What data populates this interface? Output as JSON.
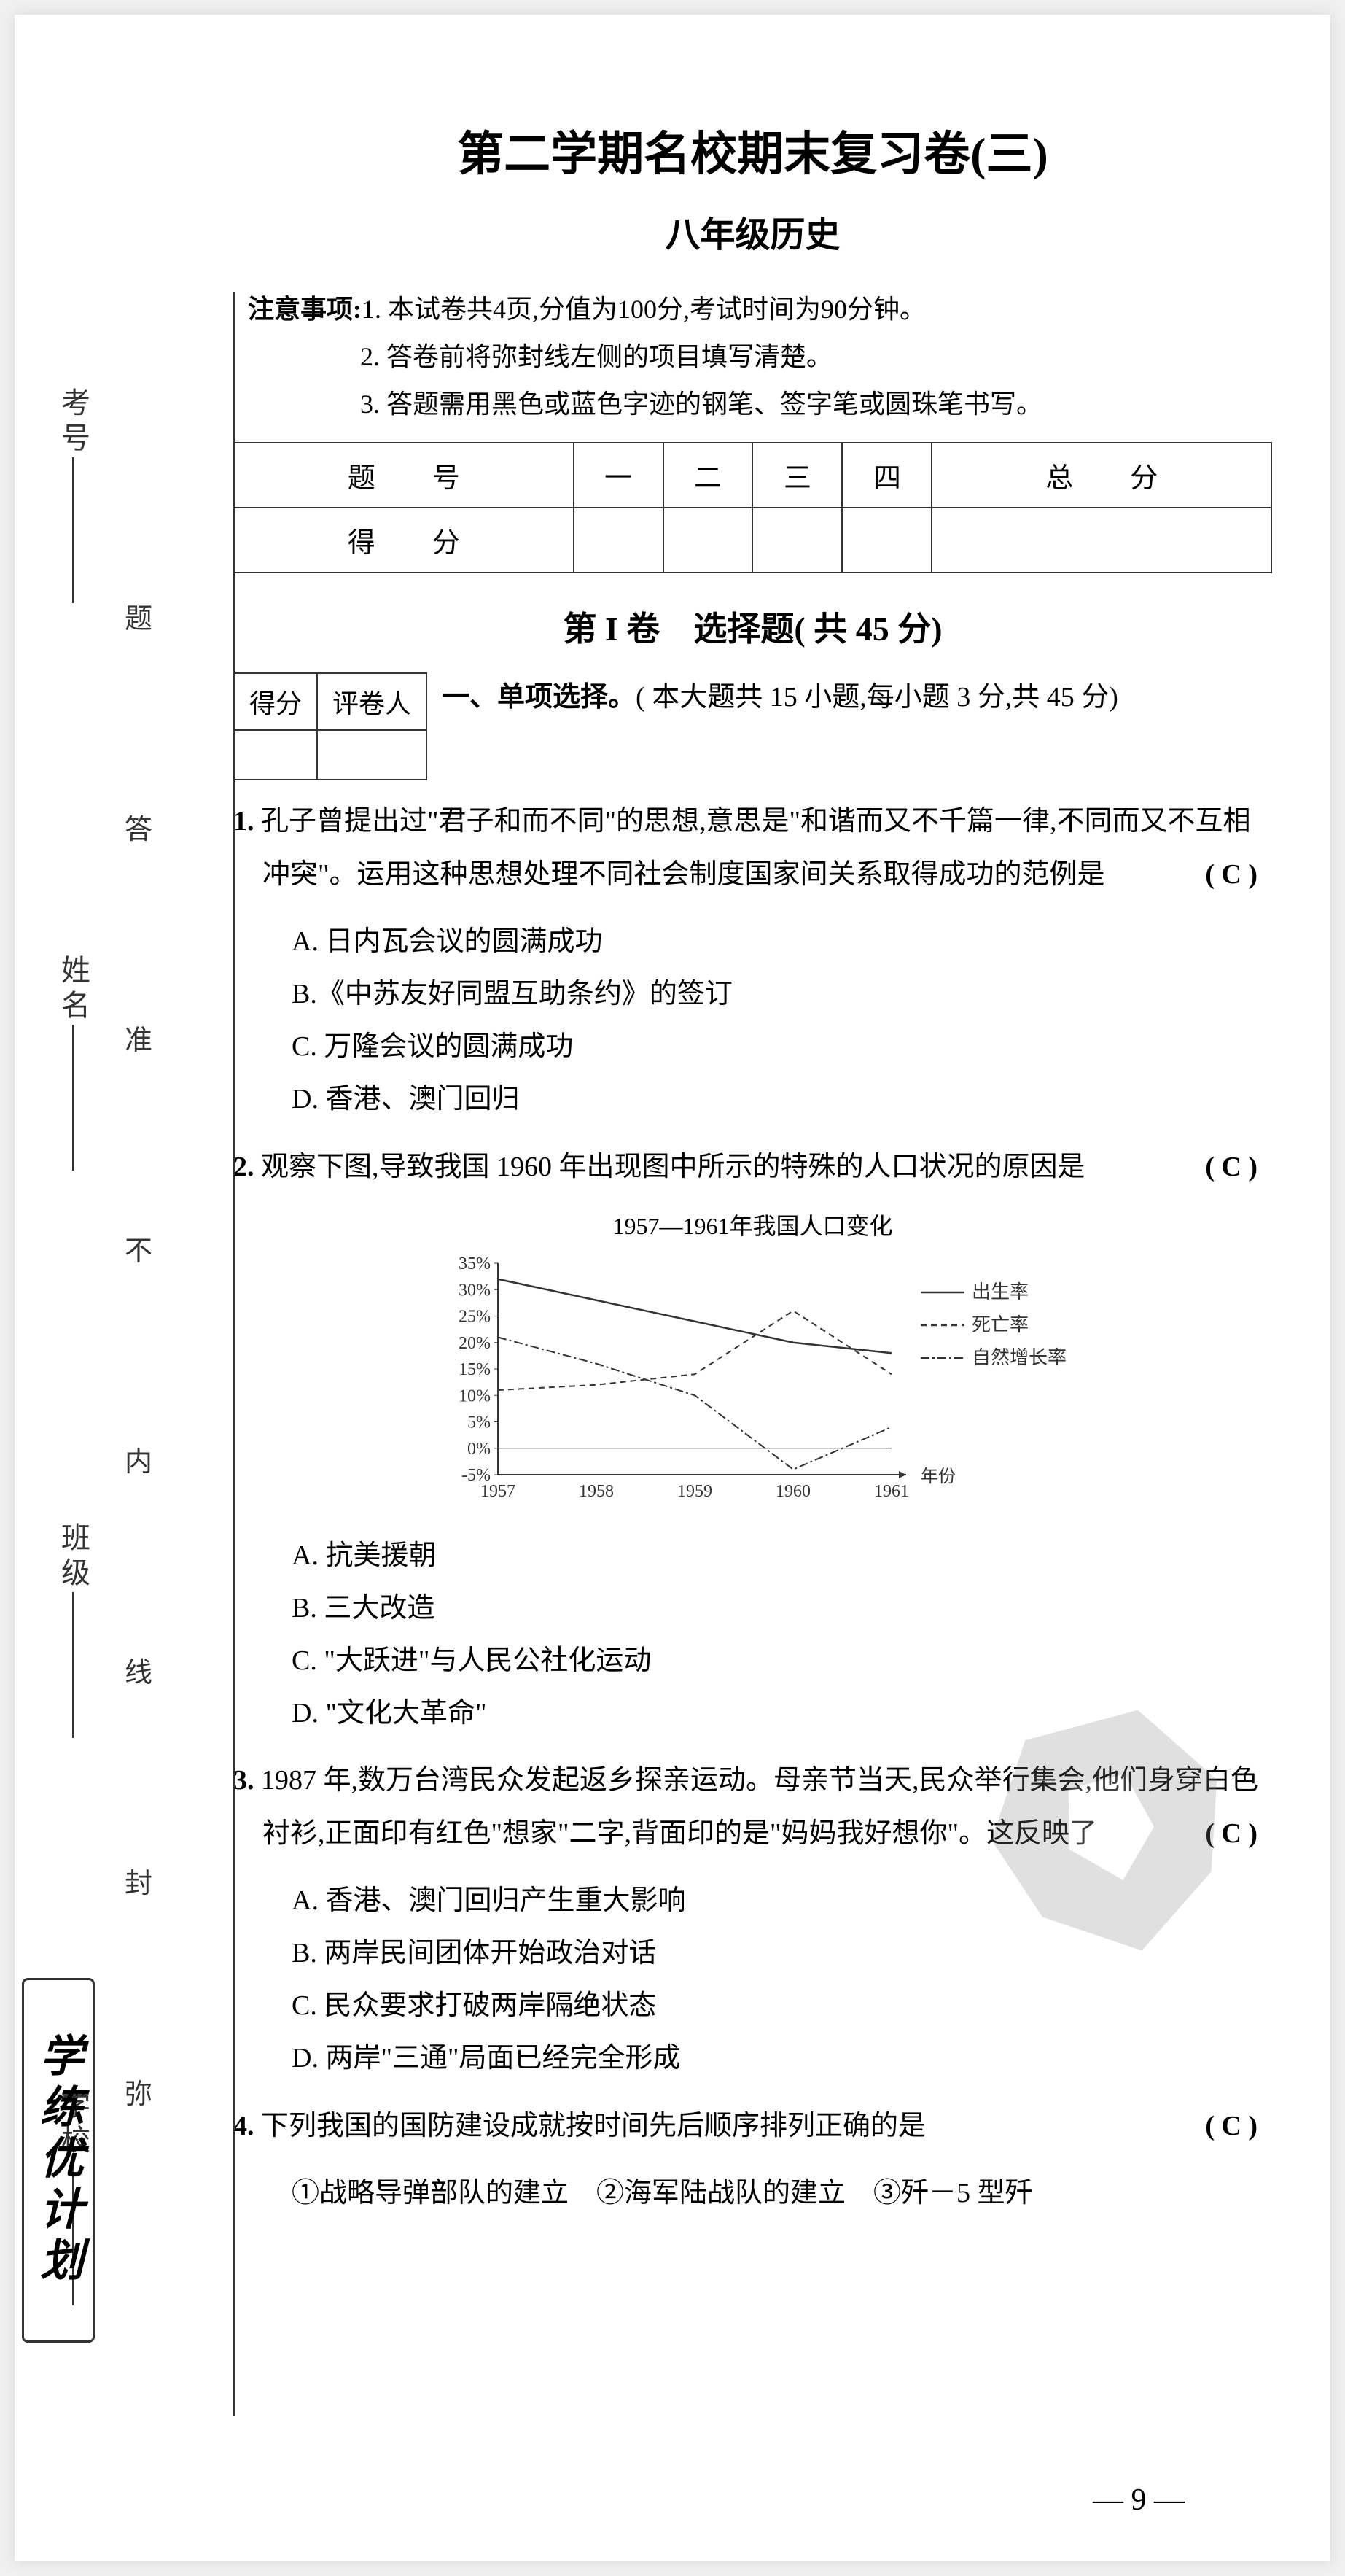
{
  "margin": {
    "labels": [
      "考号",
      "姓名",
      "班级",
      "学校"
    ],
    "binding": [
      "题",
      "答",
      "准",
      "不",
      "内",
      "线",
      "封",
      "弥"
    ],
    "logo": "学练优计划"
  },
  "header": {
    "title": "第二学期名校期末复习卷(三)",
    "subtitle": "八年级历史",
    "notice_label": "注意事项:",
    "notices": [
      "1. 本试卷共4页,分值为100分,考试时间为90分钟。",
      "2. 答卷前将弥封线左侧的项目填写清楚。",
      "3. 答题需用黑色或蓝色字迹的钢笔、签字笔或圆珠笔书写。"
    ]
  },
  "score_table": {
    "row1": [
      "题　号",
      "一",
      "二",
      "三",
      "四",
      "总　分"
    ],
    "row2": [
      "得　分",
      "",
      "",
      "",
      "",
      ""
    ]
  },
  "section1": {
    "title": "第 I 卷　选择题( 共 45 分)",
    "scorer": {
      "h1": "得分",
      "h2": "评卷人"
    },
    "intro_label": "一、单项选择。",
    "intro_text": "( 本大题共 15 小题,每小题 3 分,共 45 分)"
  },
  "questions": [
    {
      "num": "1.",
      "text": "孔子曾提出过\"君子和而不同\"的思想,意思是\"和谐而又不千篇一律,不同而又不互相冲突\"。运用这种思想处理不同社会制度国家间关系取得成功的范例是",
      "answer": "( C )",
      "options": [
        "A. 日内瓦会议的圆满成功",
        "B.《中苏友好同盟互助条约》的签订",
        "C. 万隆会议的圆满成功",
        "D. 香港、澳门回归"
      ]
    },
    {
      "num": "2.",
      "text": "观察下图,导致我国 1960 年出现图中所示的特殊的人口状况的原因是",
      "answer": "( C )",
      "options": [
        "A. 抗美援朝",
        "B. 三大改造",
        "C. \"大跃进\"与人民公社化运动",
        "D. \"文化大革命\""
      ]
    },
    {
      "num": "3.",
      "text": "1987 年,数万台湾民众发起返乡探亲运动。母亲节当天,民众举行集会,他们身穿白色衬衫,正面印有红色\"想家\"二字,背面印的是\"妈妈我好想你\"。这反映了",
      "answer": "( C )",
      "options": [
        "A. 香港、澳门回归产生重大影响",
        "B. 两岸民间团体开始政治对话",
        "C. 民众要求打破两岸隔绝状态",
        "D. 两岸\"三通\"局面已经完全形成"
      ]
    },
    {
      "num": "4.",
      "text": "下列我国的国防建设成就按时间先后顺序排列正确的是",
      "answer": "( C )",
      "options_inline": "①战略导弹部队的建立　②海军陆战队的建立　③歼－5 型歼"
    }
  ],
  "chart": {
    "title": "1957—1961年我国人口变化",
    "ylabels": [
      "35%",
      "30%",
      "25%",
      "20%",
      "15%",
      "10%",
      "5%",
      "0%",
      "-5%"
    ],
    "xlabels": [
      "1957",
      "1958",
      "1959",
      "1960",
      "1961"
    ],
    "xaxis_label": "年份",
    "legend": [
      "出生率",
      "死亡率",
      "自然增长率"
    ],
    "series": {
      "birth": [
        32,
        28,
        24,
        20,
        18
      ],
      "death": [
        11,
        12,
        14,
        26,
        14
      ],
      "growth": [
        21,
        16,
        10,
        -4,
        4
      ]
    },
    "ylim": [
      -5,
      35
    ],
    "colors": {
      "line": "#333333",
      "grid": "#999999",
      "text": "#333333"
    }
  },
  "page_num": "— 9 —"
}
